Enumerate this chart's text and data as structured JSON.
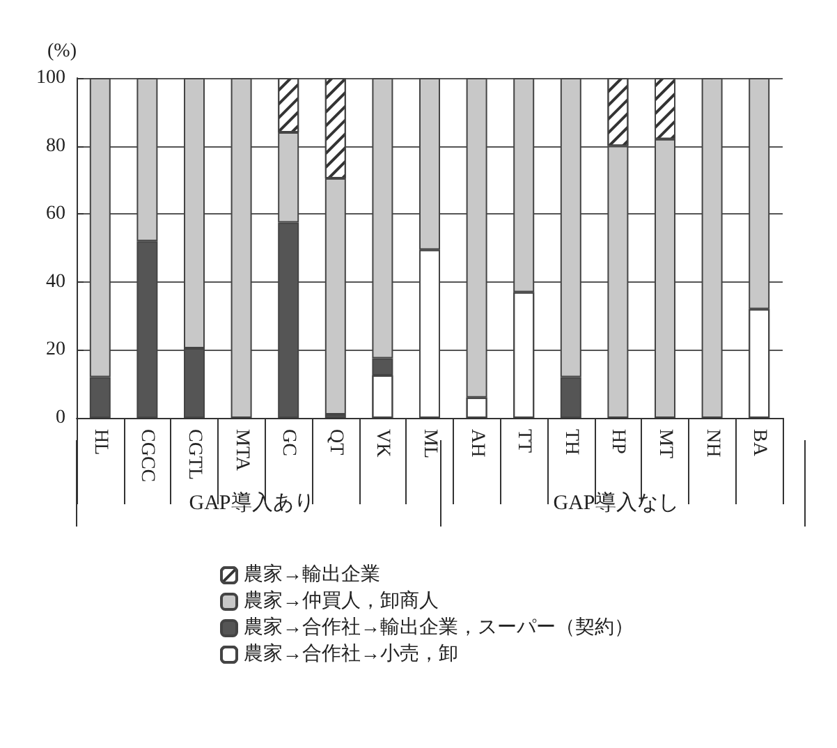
{
  "chart_data": {
    "type": "bar",
    "stacked": true,
    "ylabel": "(%)",
    "categories": [
      "HL",
      "CGCC",
      "CGTL",
      "MTA",
      "GC",
      "QT",
      "VK",
      "ML",
      "AH",
      "TT",
      "TH",
      "HP",
      "MT",
      "NH",
      "BA"
    ],
    "series": [
      {
        "name": "農家→合作社→小売，卸",
        "color": "#ffffff",
        "values": [
          null,
          null,
          null,
          null,
          null,
          null,
          12.5,
          49.5,
          6,
          37,
          null,
          null,
          null,
          null,
          32
        ]
      },
      {
        "name": "農家→合作社→輸出企業，スーパー（契約）",
        "color": "#555555",
        "values": [
          12,
          52,
          20.5,
          null,
          57.5,
          1,
          5,
          null,
          null,
          null,
          12,
          null,
          null,
          null,
          null
        ]
      },
      {
        "name": "農家→仲買人，卸商人",
        "color": "#c8c8c8",
        "values": [
          88,
          48,
          79.5,
          100,
          26.5,
          69.5,
          82.5,
          50.5,
          94,
          63,
          88,
          80,
          82,
          100,
          68
        ]
      },
      {
        "name": "農家→輸出企業",
        "color": "#ffffff",
        "values": [
          null,
          null,
          null,
          null,
          16,
          29.5,
          null,
          null,
          null,
          null,
          null,
          20,
          18,
          null,
          null
        ]
      }
    ],
    "ylim": [
      0,
      100
    ],
    "yticks": [
      0,
      20,
      40,
      60,
      80,
      100
    ],
    "grid": "y",
    "legend": "bottom",
    "annotations": [
      "GAP導入あり",
      "GAP導入なし"
    ]
  }
}
